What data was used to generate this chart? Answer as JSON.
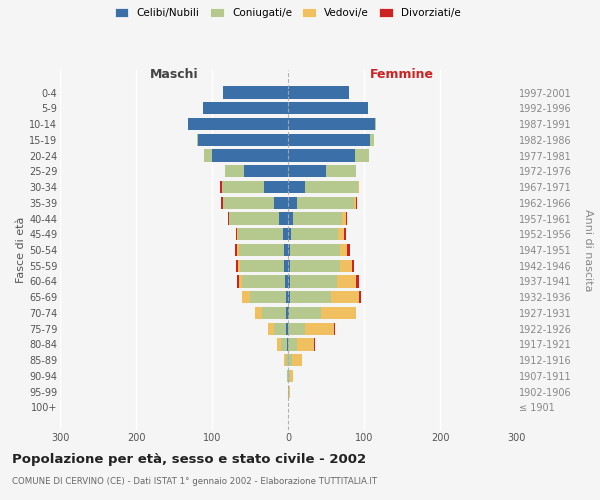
{
  "age_groups": [
    "100+",
    "95-99",
    "90-94",
    "85-89",
    "80-84",
    "75-79",
    "70-74",
    "65-69",
    "60-64",
    "55-59",
    "50-54",
    "45-49",
    "40-44",
    "35-39",
    "30-34",
    "25-29",
    "20-24",
    "15-19",
    "10-14",
    "5-9",
    "0-4"
  ],
  "birth_years": [
    "≤ 1901",
    "1902-1906",
    "1907-1911",
    "1912-1916",
    "1917-1921",
    "1922-1926",
    "1927-1931",
    "1932-1936",
    "1937-1941",
    "1942-1946",
    "1947-1951",
    "1952-1956",
    "1957-1961",
    "1962-1966",
    "1967-1971",
    "1972-1976",
    "1977-1981",
    "1982-1986",
    "1987-1991",
    "1992-1996",
    "1997-2001"
  ],
  "male_celibi": [
    0,
    0,
    0,
    0,
    1,
    2,
    2,
    3,
    4,
    5,
    5,
    6,
    12,
    18,
    32,
    58,
    100,
    118,
    132,
    112,
    85
  ],
  "male_coniugati": [
    0,
    0,
    1,
    3,
    8,
    16,
    32,
    47,
    56,
    58,
    60,
    60,
    65,
    68,
    55,
    25,
    10,
    2,
    0,
    0,
    0
  ],
  "male_vedovi": [
    0,
    0,
    0,
    2,
    5,
    8,
    10,
    10,
    5,
    3,
    2,
    1,
    1,
    0,
    0,
    0,
    0,
    0,
    0,
    0,
    0
  ],
  "male_divorziati": [
    0,
    0,
    0,
    0,
    0,
    0,
    0,
    0,
    2,
    3,
    3,
    2,
    1,
    2,
    2,
    0,
    0,
    0,
    0,
    0,
    0
  ],
  "fem_nubili": [
    0,
    0,
    0,
    0,
    0,
    0,
    1,
    2,
    2,
    3,
    3,
    4,
    6,
    12,
    22,
    50,
    88,
    108,
    115,
    105,
    80
  ],
  "fem_coniugate": [
    0,
    1,
    2,
    5,
    12,
    22,
    42,
    55,
    62,
    65,
    65,
    62,
    65,
    75,
    70,
    40,
    18,
    5,
    1,
    0,
    0
  ],
  "fem_vedove": [
    0,
    1,
    4,
    14,
    22,
    38,
    46,
    36,
    26,
    16,
    10,
    8,
    5,
    2,
    1,
    0,
    0,
    0,
    0,
    0,
    0
  ],
  "fem_divorziate": [
    0,
    0,
    0,
    0,
    1,
    2,
    1,
    3,
    3,
    3,
    3,
    2,
    2,
    2,
    1,
    0,
    0,
    0,
    0,
    0,
    0
  ],
  "colors": {
    "celibi": "#3a6fa8",
    "coniugati": "#b5c98e",
    "vedovi": "#f0c060",
    "divorziati": "#cc2222"
  },
  "xlim": 300,
  "title": "Popolazione per età, sesso e stato civile - 2002",
  "subtitle": "COMUNE DI CERVINO (CE) - Dati ISTAT 1° gennaio 2002 - Elaborazione TUTTITALIA.IT",
  "ylabel_left": "Fasce di età",
  "ylabel_right": "Anni di nascita",
  "legend_labels": [
    "Celibi/Nubili",
    "Coniugati/e",
    "Vedovi/e",
    "Divorziati/e"
  ],
  "background_color": "#f5f5f5",
  "maschi_color": "#444444",
  "femmine_color": "#cc2222"
}
